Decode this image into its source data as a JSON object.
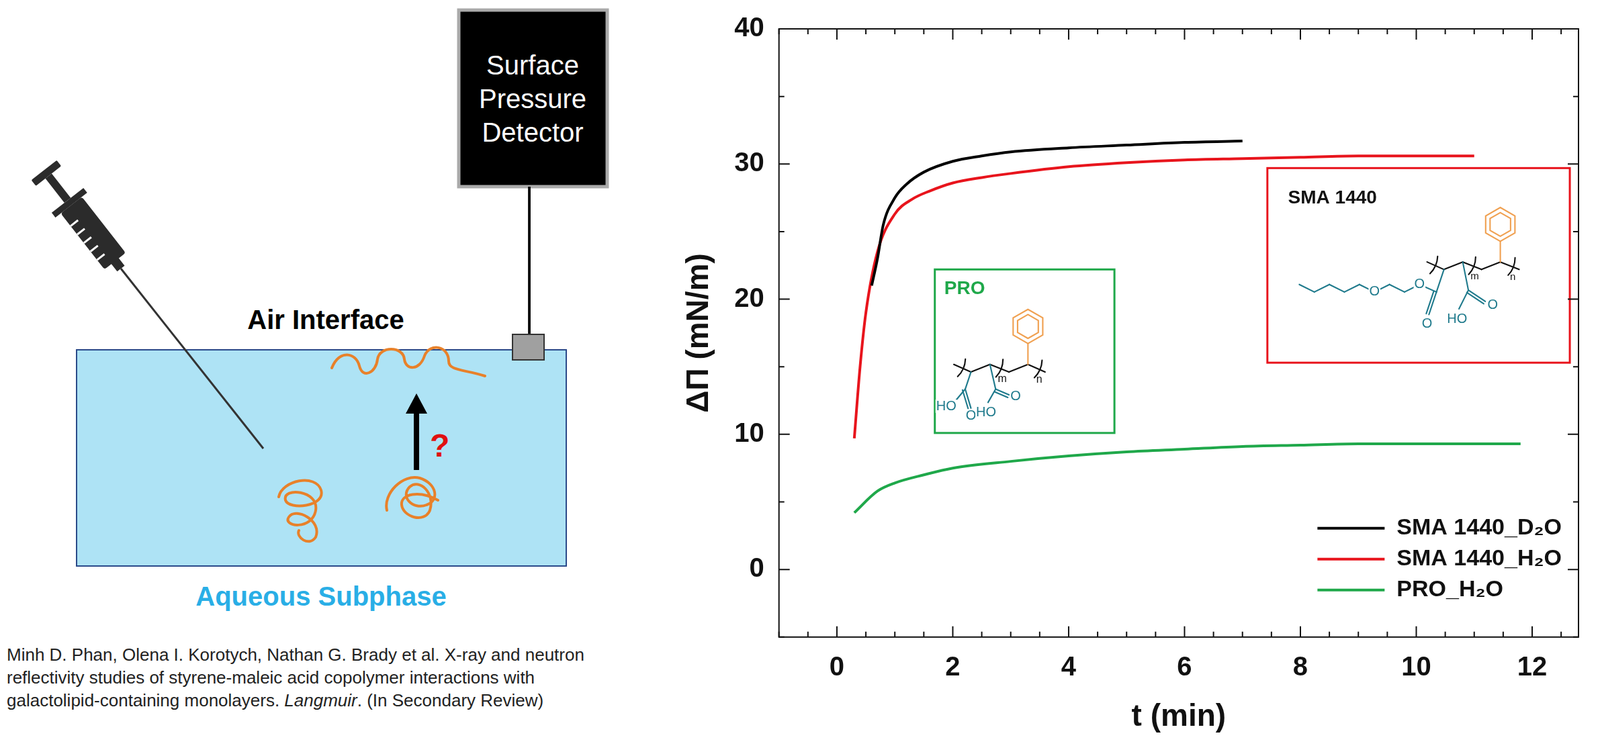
{
  "chart_data": {
    "type": "line",
    "x_label": "t (min)",
    "y_label": "ΔΠ (mN/m)",
    "xlim": [
      -1,
      12.8
    ],
    "xticks": [
      0,
      2,
      4,
      6,
      8,
      10,
      12
    ],
    "ylim": [
      -5,
      40
    ],
    "yticks": [
      0,
      10,
      20,
      30,
      40
    ],
    "grid": false,
    "legend": "lower right",
    "series": [
      {
        "name": "SMA 1440_D₂O",
        "color": "#000000",
        "x": [
          0.6,
          0.7,
          0.8,
          1.0,
          1.2,
          1.5,
          2,
          2.5,
          3,
          4,
          5,
          6,
          7
        ],
        "values": [
          21,
          23,
          25.5,
          27.5,
          28.5,
          29.4,
          30.2,
          30.6,
          30.9,
          31.2,
          31.4,
          31.6,
          31.7
        ]
      },
      {
        "name": "SMA 1440_H₂O",
        "color": "#e8141c",
        "x": [
          0.3,
          0.4,
          0.5,
          0.7,
          1.0,
          1.3,
          1.6,
          2,
          2.5,
          3,
          4,
          5,
          6,
          7,
          8,
          9,
          10,
          11
        ],
        "values": [
          9.7,
          15,
          19,
          23.5,
          26.3,
          27.4,
          28,
          28.6,
          29,
          29.3,
          29.8,
          30.1,
          30.3,
          30.4,
          30.5,
          30.6,
          30.6,
          30.6
        ]
      },
      {
        "name": "PRO_H₂O",
        "color": "#1fa84a",
        "x": [
          0.3,
          0.7,
          1.0,
          1.5,
          2,
          3,
          4,
          5,
          6,
          7,
          8,
          9,
          10,
          11,
          11.8
        ],
        "values": [
          4.2,
          5.8,
          6.4,
          7.0,
          7.5,
          8.0,
          8.4,
          8.7,
          8.9,
          9.1,
          9.2,
          9.3,
          9.3,
          9.3,
          9.3
        ]
      }
    ],
    "annotations": [
      {
        "text": "PRO",
        "color": "#1fa84a",
        "text_color": "#1fa84a",
        "structure_labels": [
          "HO",
          "O",
          "HO",
          "O",
          "m",
          "n"
        ]
      },
      {
        "text": "SMA 1440",
        "color": "#e8141c",
        "text_color": "#111111",
        "structure_labels": [
          "O",
          "O",
          "O",
          "HO",
          "O",
          "m",
          "n"
        ]
      }
    ]
  },
  "diagram": {
    "detector": [
      "Surface",
      "Pressure",
      "Detector"
    ],
    "interface": "Air Interface",
    "subphase": "Aqueous Subphase",
    "question": "?"
  },
  "citation": {
    "lines": [
      [
        {
          "text": "Minh D. Phan, Olena I. Korotych, Nathan G. Brady et al. X-ray and neutron"
        }
      ],
      [
        {
          "text": "reflectivity studies of styrene-maleic acid copolymer interactions with"
        }
      ],
      [
        {
          "text": "galactolipid-containing monolayers. "
        },
        {
          "text": "Langmuir",
          "italic": true
        },
        {
          "text": ". (In Secondary Review)"
        }
      ]
    ]
  }
}
